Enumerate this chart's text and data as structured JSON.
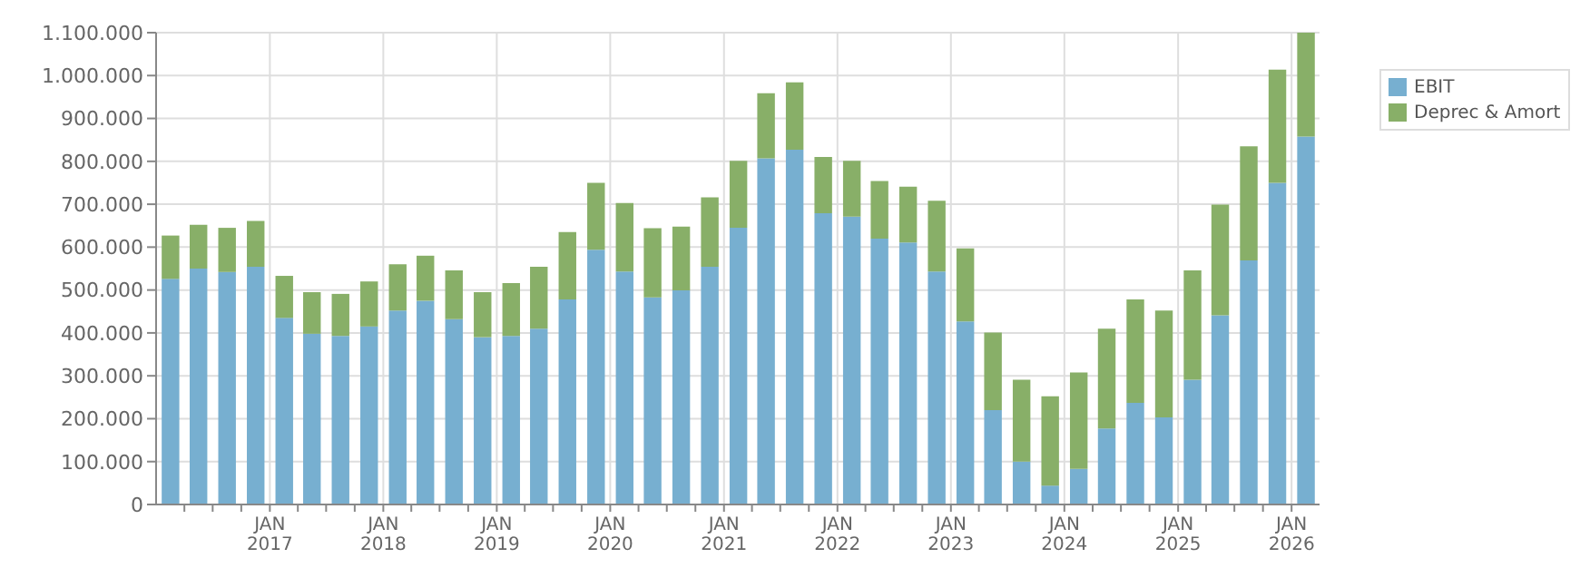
{
  "chart_data": {
    "type": "bar",
    "stacked": true,
    "x": [
      "2016-02-15",
      "2016-05-15",
      "2016-08-15",
      "2016-11-15",
      "2017-02-15",
      "2017-05-15",
      "2017-08-15",
      "2017-11-15",
      "2018-02-15",
      "2018-05-15",
      "2018-08-15",
      "2018-11-15",
      "2019-02-15",
      "2019-05-15",
      "2019-08-15",
      "2019-11-15",
      "2020-02-15",
      "2020-05-15",
      "2020-08-15",
      "2020-11-15",
      "2021-02-15",
      "2021-05-15",
      "2021-08-15",
      "2021-11-15",
      "2022-02-15",
      "2022-05-15",
      "2022-08-15",
      "2022-11-15",
      "2023-02-15",
      "2023-05-15",
      "2023-08-15",
      "2023-11-15",
      "2024-02-15",
      "2024-05-15",
      "2024-08-15",
      "2024-11-15",
      "2025-02-15",
      "2025-05-15",
      "2025-08-15",
      "2025-11-15",
      "2026-02-15"
    ],
    "series": [
      {
        "name": "EBIT",
        "color": "#77afd0",
        "values": [
          526000,
          550000,
          542000,
          554000,
          435000,
          398000,
          393000,
          415000,
          452000,
          475000,
          432000,
          390000,
          393000,
          410000,
          478000,
          594000,
          543000,
          483000,
          499000,
          554000,
          645000,
          807000,
          827000,
          679000,
          671000,
          620000,
          611000,
          543000,
          427000,
          220000,
          100000,
          44000,
          83000,
          177000,
          237000,
          203000,
          291000,
          441000,
          569000,
          750000,
          858000
        ]
      },
      {
        "name": "Deprec & Amort",
        "color": "#88af68",
        "values": [
          101000,
          102000,
          103000,
          107000,
          98000,
          97000,
          98000,
          105000,
          108000,
          105000,
          114000,
          105000,
          123000,
          144000,
          157000,
          156000,
          160000,
          161000,
          149000,
          162000,
          156000,
          152000,
          157000,
          131000,
          130000,
          134000,
          130000,
          165000,
          170000,
          181000,
          191000,
          208000,
          225000,
          233000,
          241000,
          249000,
          255000,
          258000,
          266000,
          264000,
          242000
        ]
      }
    ],
    "xlim": [
      "2016-01-01",
      "2026-04-01"
    ],
    "xticks": [
      {
        "value": "2016-04-01",
        "label": null
      },
      {
        "value": "2016-07-01",
        "label": null
      },
      {
        "value": "2016-10-01",
        "label": null
      },
      {
        "value": "2017-01-01",
        "label": "JAN 2017"
      },
      {
        "value": "2017-04-01",
        "label": null
      },
      {
        "value": "2017-07-01",
        "label": null
      },
      {
        "value": "2017-10-01",
        "label": null
      },
      {
        "value": "2018-01-01",
        "label": "JAN 2018"
      },
      {
        "value": "2018-04-01",
        "label": null
      },
      {
        "value": "2018-07-01",
        "label": null
      },
      {
        "value": "2018-10-01",
        "label": null
      },
      {
        "value": "2019-01-01",
        "label": "JAN 2019"
      },
      {
        "value": "2019-04-01",
        "label": null
      },
      {
        "value": "2019-07-01",
        "label": null
      },
      {
        "value": "2019-10-01",
        "label": null
      },
      {
        "value": "2020-01-01",
        "label": "JAN 2020"
      },
      {
        "value": "2020-04-01",
        "label": null
      },
      {
        "value": "2020-07-01",
        "label": null
      },
      {
        "value": "2020-10-01",
        "label": null
      },
      {
        "value": "2021-01-01",
        "label": "JAN 2021"
      },
      {
        "value": "2021-04-01",
        "label": null
      },
      {
        "value": "2021-07-01",
        "label": null
      },
      {
        "value": "2021-10-01",
        "label": null
      },
      {
        "value": "2022-01-01",
        "label": "JAN 2022"
      },
      {
        "value": "2022-04-01",
        "label": null
      },
      {
        "value": "2022-07-01",
        "label": null
      },
      {
        "value": "2022-10-01",
        "label": null
      },
      {
        "value": "2023-01-01",
        "label": "JAN 2023"
      },
      {
        "value": "2023-04-01",
        "label": null
      },
      {
        "value": "2023-07-01",
        "label": null
      },
      {
        "value": "2023-10-01",
        "label": null
      },
      {
        "value": "2024-01-01",
        "label": "JAN 2024"
      },
      {
        "value": "2024-04-01",
        "label": null
      },
      {
        "value": "2024-07-01",
        "label": null
      },
      {
        "value": "2024-10-01",
        "label": null
      },
      {
        "value": "2025-01-01",
        "label": "JAN 2025"
      },
      {
        "value": "2025-04-01",
        "label": null
      },
      {
        "value": "2025-07-01",
        "label": null
      },
      {
        "value": "2025-10-01",
        "label": null
      },
      {
        "value": "2026-01-01",
        "label": "JAN 2026"
      }
    ],
    "ylim": [
      0,
      1100000
    ],
    "yticks": [
      0,
      {
        "value": 100000,
        "label": "100.000"
      },
      {
        "value": 200000,
        "label": "200.000"
      },
      {
        "value": 300000,
        "label": "300.000"
      },
      {
        "value": 400000,
        "label": "400.000"
      },
      {
        "value": 500000,
        "label": "500.000"
      },
      {
        "value": 600000,
        "label": "600.000"
      },
      {
        "value": 700000,
        "label": "700.000"
      },
      {
        "value": 800000,
        "label": "800.000"
      },
      {
        "value": 900000,
        "label": "900.000"
      },
      {
        "value": 1000000,
        "label": "1.000.000"
      },
      {
        "value": 1100000,
        "label": "1.100.000"
      }
    ],
    "grid": true,
    "legend": "top right"
  }
}
